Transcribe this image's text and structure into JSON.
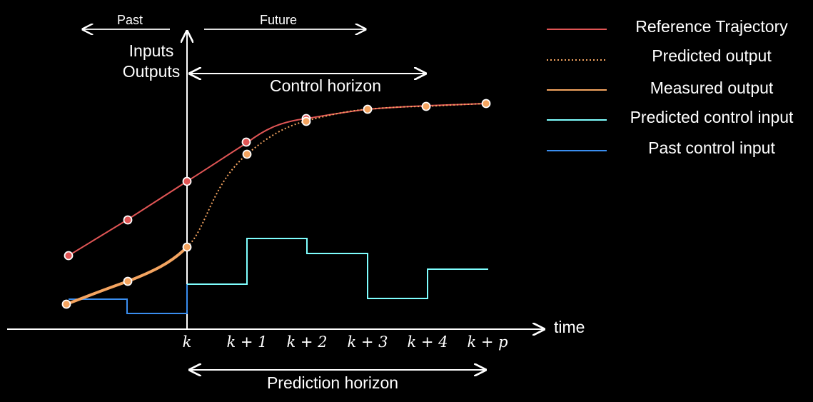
{
  "labels": {
    "past": "Past",
    "future": "Future",
    "y_axis_line1": "Inputs",
    "y_axis_line2": "Outputs",
    "control_horizon": "Control horizon",
    "prediction_horizon": "Prediction horizon",
    "x_axis": "time"
  },
  "ticks": [
    "k",
    "k + 1",
    "k + 2",
    "k + 3",
    "k + 4",
    "k + p"
  ],
  "legend": [
    {
      "label": "Reference Trajectory",
      "color": "#e05555",
      "style": "solid"
    },
    {
      "label": "Predicted output",
      "color": "#f4a460",
      "style": "dotted"
    },
    {
      "label": "Measured output",
      "color": "#f4a460",
      "style": "solid"
    },
    {
      "label": "Predicted control input",
      "color": "#7fffff",
      "style": "solid"
    },
    {
      "label": "Past control input",
      "color": "#3a8ef0",
      "style": "solid"
    }
  ],
  "colors": {
    "axis": "#ffffff",
    "reference": "#e05555",
    "predicted_output": "#f4a460",
    "measured_output": "#f4a460",
    "predicted_input": "#7fffff",
    "past_input": "#3a8ef0",
    "background": "#000000"
  }
}
